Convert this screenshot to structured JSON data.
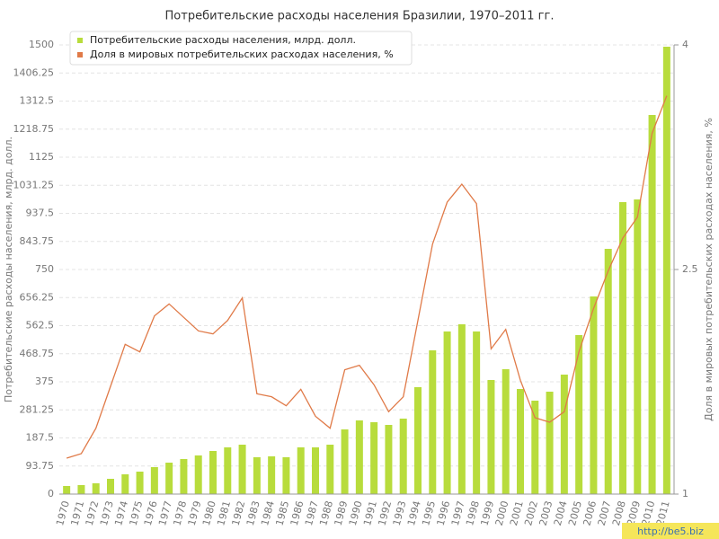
{
  "chart_data": {
    "type": "bar-line",
    "title": "Потребительские расходы населения Бразилии, 1970–2011 гг.",
    "y_label": "Потребительские расходы населения, млрд. долл.",
    "y2_label": "Доля в мировых потребительских расходах населения, %",
    "categories": [
      "1970",
      "1971",
      "1972",
      "1973",
      "1974",
      "1975",
      "1976",
      "1977",
      "1978",
      "1979",
      "1980",
      "1981",
      "1982",
      "1983",
      "1984",
      "1985",
      "1986",
      "1987",
      "1988",
      "1989",
      "1990",
      "1991",
      "1992",
      "1993",
      "1994",
      "1995",
      "1996",
      "1997",
      "1998",
      "1999",
      "2000",
      "2001",
      "2002",
      "2003",
      "2004",
      "2005",
      "2006",
      "2007",
      "2008",
      "2009",
      "2010",
      "2011"
    ],
    "series": [
      {
        "name": "Потребительские расходы населения, млрд. долл.",
        "color": "#b8dc3c",
        "type": "bar",
        "values": [
          27,
          30,
          36,
          51,
          66,
          75,
          90,
          105,
          117,
          129,
          144,
          156,
          165,
          123,
          126,
          123,
          156,
          156,
          165,
          216,
          246,
          240,
          231,
          252,
          357,
          480,
          543,
          567,
          543,
          381,
          417,
          351,
          312,
          342,
          399,
          531,
          660,
          819,
          975,
          984,
          1266,
          1494
        ]
      },
      {
        "name": "Доля в мировых потребительских расходах населения, %",
        "color": "#e07a48",
        "type": "line",
        "axis": "y2",
        "values": [
          1.24,
          1.27,
          1.44,
          1.72,
          2.0,
          1.95,
          2.19,
          2.27,
          2.18,
          2.09,
          2.07,
          2.16,
          2.31,
          1.67,
          1.65,
          1.59,
          1.7,
          1.52,
          1.44,
          1.83,
          1.86,
          1.73,
          1.55,
          1.65,
          2.16,
          2.67,
          2.95,
          3.07,
          2.94,
          1.97,
          2.1,
          1.76,
          1.51,
          1.48,
          1.55,
          1.95,
          2.24,
          2.49,
          2.71,
          2.85,
          3.41,
          3.66
        ]
      }
    ],
    "ylim": [
      0,
      1500
    ],
    "yticks": [
      0,
      93.75,
      187.5,
      281.25,
      375,
      468.75,
      562.5,
      656.25,
      750,
      843.75,
      937.5,
      1031.25,
      1125,
      1218.75,
      1312.5,
      1406.25,
      1500
    ],
    "y2lim": [
      1,
      4
    ],
    "y2ticks": [
      1,
      2.5,
      4
    ],
    "grid": true,
    "legend": "top-left",
    "watermark": "http://be5.biz"
  }
}
